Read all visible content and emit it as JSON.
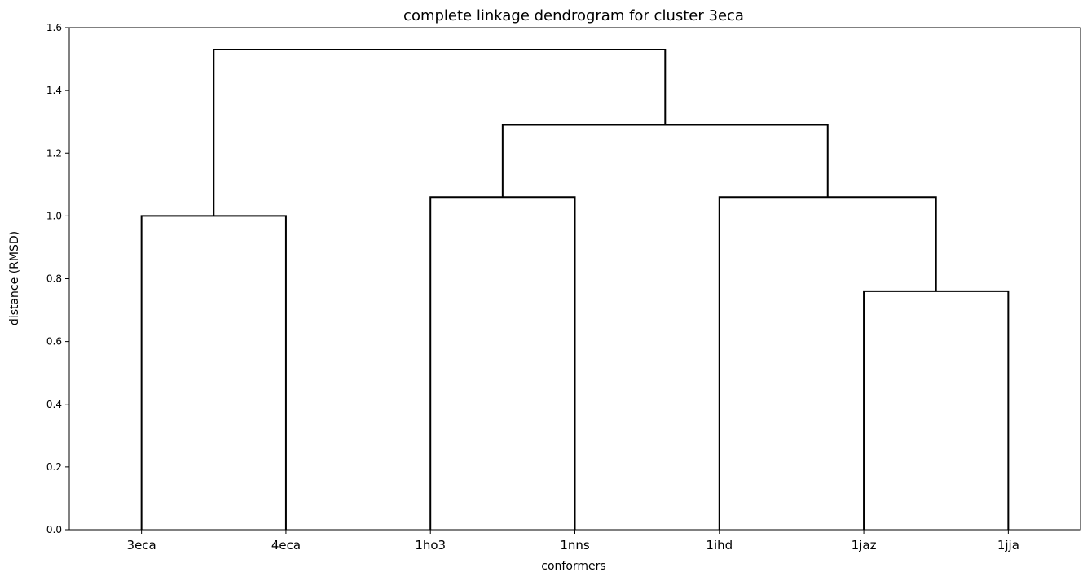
{
  "chart_data": {
    "type": "dendrogram",
    "title": "complete linkage dendrogram for cluster 3eca",
    "xlabel": "conformers",
    "ylabel": "distance (RMSD)",
    "ylim": [
      0,
      1.6
    ],
    "yticks": [
      "0.0",
      "0.2",
      "0.4",
      "0.6",
      "0.8",
      "1.0",
      "1.2",
      "1.4",
      "1.6"
    ],
    "leaves": [
      "3eca",
      "4eca",
      "1ho3",
      "1nns",
      "1ihd",
      "1jaz",
      "1jja"
    ],
    "merges": [
      {
        "left": "3eca",
        "right": "4eca",
        "height": 1.0
      },
      {
        "left": "1ho3",
        "right": "1nns",
        "height": 1.06
      },
      {
        "left": "1jaz",
        "right": "1jja",
        "height": 0.76
      },
      {
        "left": "1ihd",
        "right": "1jaz+1jja",
        "height": 1.06
      },
      {
        "left": "1ho3+1nns",
        "right": "1ihd+1jaz+1jja",
        "height": 1.29
      },
      {
        "left": "3eca+4eca",
        "right": "1ho3+1nns+1ihd+1jaz+1jja",
        "height": 1.53
      }
    ],
    "line_color": "#000000",
    "grid": false,
    "legend": "none"
  }
}
